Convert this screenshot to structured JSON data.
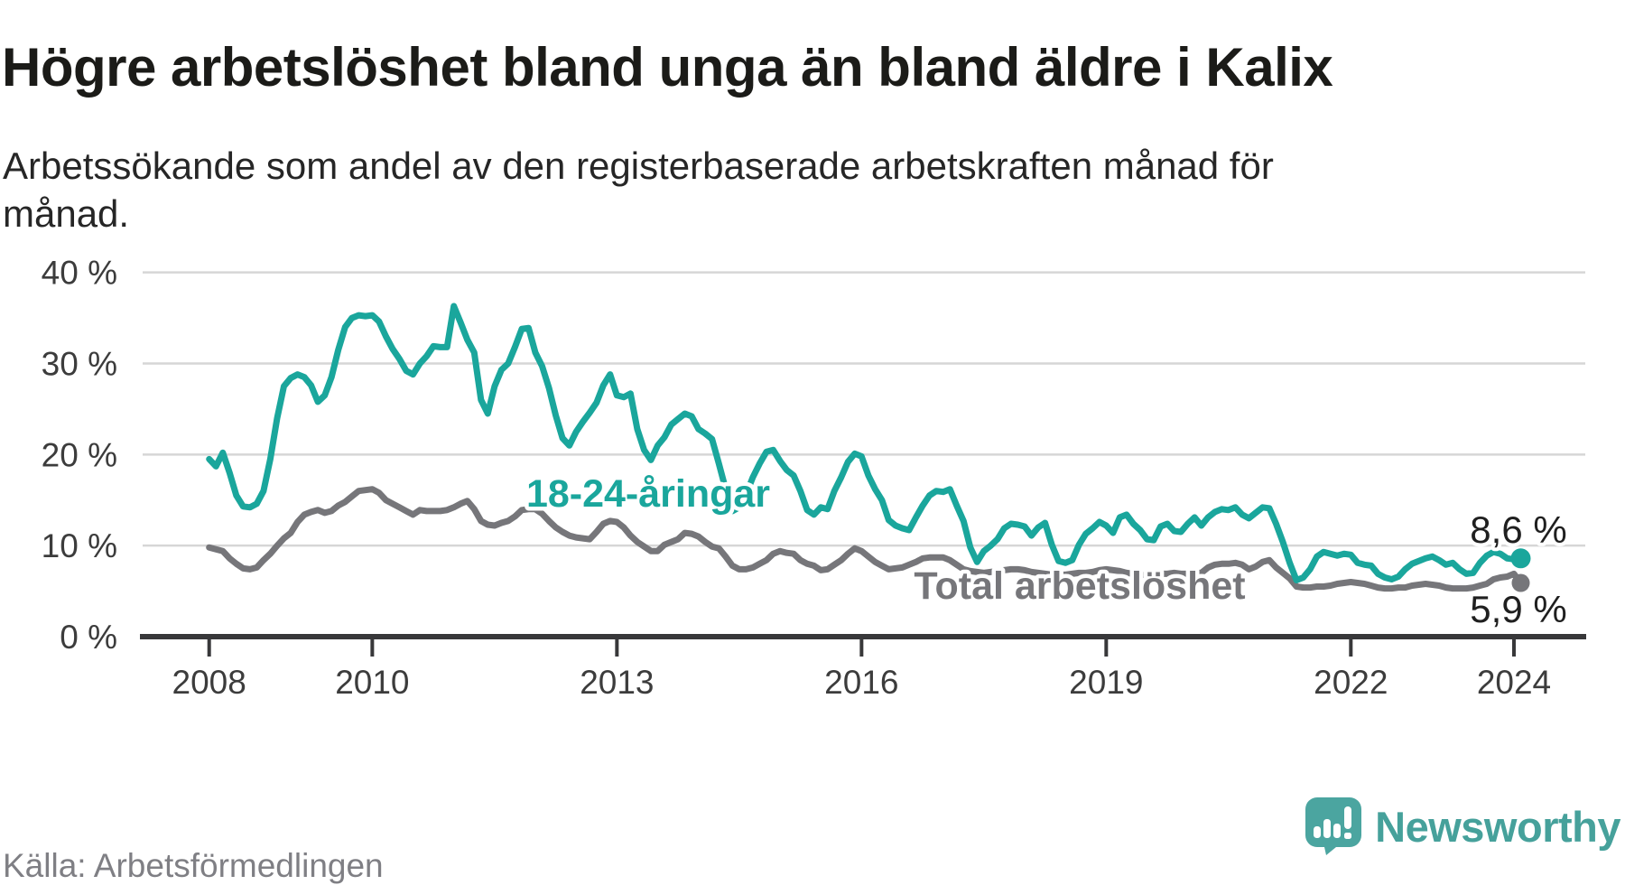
{
  "header": {
    "title": "Högre arbetslöshet bland unga än bland äldre i Kalix",
    "subtitle": "Arbetssökande som andel av den registerbaserade arbetskraften månad för månad."
  },
  "footer": {
    "source": "Källa: Arbetsförmedlingen",
    "brand": "Newsworthy"
  },
  "colors": {
    "youth_line": "#1aa69c",
    "total_line": "#76767a",
    "grid": "#d6d6d6",
    "axis": "#38383a",
    "tick_text": "#3c3c3c",
    "value_text": "#1f1f1f",
    "title_text": "#1b1b18",
    "source_text": "#7f7f84",
    "logo": "#46a19b"
  },
  "chart_data": {
    "type": "line",
    "title": "Högre arbetslöshet bland unga än bland äldre i Kalix",
    "subtitle": "Arbetssökande som andel av den registerbaserade arbetskraften månad för månad.",
    "xlabel": "",
    "ylabel": "",
    "x_start_year": 2008,
    "x_step_months": 1,
    "ylim": [
      0,
      40
    ],
    "grid": "horizontal",
    "y_axis": {
      "unit": "%",
      "ticks": [
        {
          "label": "40 %",
          "value": 40
        },
        {
          "label": "30 %",
          "value": 30
        },
        {
          "label": "20 %",
          "value": 20
        },
        {
          "label": "10 %",
          "value": 10
        },
        {
          "label": "0 %",
          "value": 0
        }
      ]
    },
    "x_axis": {
      "ticks": [
        {
          "label": "2008",
          "year": 2008
        },
        {
          "label": "2010",
          "year": 2010
        },
        {
          "label": "2013",
          "year": 2013
        },
        {
          "label": "2016",
          "year": 2016
        },
        {
          "label": "2019",
          "year": 2019
        },
        {
          "label": "2022",
          "year": 2022
        },
        {
          "label": "2024",
          "year": 2024
        }
      ]
    },
    "series": [
      {
        "id": "youth",
        "name": "18-24-åringar",
        "annotation_label": "18-24-åringar",
        "end_label": "8,6 %",
        "color_key": "youth_line",
        "values": [
          19.5,
          18.7,
          20.2,
          18.0,
          15.5,
          14.3,
          14.2,
          14.6,
          16.0,
          19.5,
          24.0,
          27.5,
          28.4,
          28.8,
          28.5,
          27.6,
          25.8,
          26.5,
          28.5,
          31.5,
          34.0,
          35.0,
          35.3,
          35.2,
          35.3,
          34.6,
          33.0,
          31.6,
          30.5,
          29.2,
          28.8,
          30.0,
          30.8,
          31.9,
          31.8,
          31.8,
          36.3,
          34.5,
          32.6,
          31.2,
          26.0,
          24.5,
          27.5,
          29.3,
          30.0,
          31.8,
          33.8,
          33.9,
          31.2,
          29.7,
          27.3,
          24.3,
          21.8,
          21.0,
          22.5,
          23.6,
          24.6,
          25.7,
          27.6,
          28.8,
          26.5,
          26.3,
          26.7,
          22.8,
          20.5,
          19.4,
          21.0,
          21.9,
          23.3,
          23.9,
          24.5,
          24.2,
          22.8,
          22.3,
          21.7,
          19.0,
          16.2,
          13.8,
          14.2,
          15.6,
          17.5,
          19.0,
          20.3,
          20.5,
          19.3,
          18.3,
          17.7,
          16.0,
          13.9,
          13.4,
          14.2,
          14.0,
          16.0,
          17.5,
          19.2,
          20.1,
          19.8,
          17.7,
          16.2,
          15.0,
          12.8,
          12.2,
          11.9,
          11.7,
          13.1,
          14.4,
          15.5,
          16.0,
          15.9,
          16.2,
          14.4,
          12.7,
          9.8,
          8.2,
          9.4,
          10.0,
          10.7,
          11.9,
          12.4,
          12.3,
          12.1,
          11.1,
          12.0,
          12.5,
          10.1,
          8.3,
          8.1,
          8.4,
          10.1,
          11.3,
          11.9,
          12.6,
          12.2,
          11.4,
          13.1,
          13.4,
          12.4,
          11.7,
          10.7,
          10.6,
          12.1,
          12.4,
          11.6,
          11.5,
          12.4,
          13.1,
          12.2,
          13.1,
          13.7,
          14.0,
          13.9,
          14.2,
          13.4,
          13.0,
          13.6,
          14.2,
          14.1,
          12.4,
          10.4,
          8.1,
          6.2,
          6.5,
          7.4,
          8.8,
          9.3,
          9.1,
          8.9,
          9.1,
          9.0,
          8.1,
          7.9,
          7.8,
          6.9,
          6.5,
          6.3,
          6.6,
          7.4,
          8.0,
          8.3,
          8.6,
          8.8,
          8.4,
          7.9,
          8.1,
          7.4,
          6.9,
          7.0,
          8.1,
          8.9,
          9.3,
          9.1,
          8.6,
          8.5,
          8.6
        ]
      },
      {
        "id": "total",
        "name": "Total arbetslöshet",
        "annotation_label": "Total arbetslöshet",
        "end_label": "5,9 %",
        "color_key": "total_line",
        "values": [
          9.8,
          9.6,
          9.4,
          8.6,
          8.0,
          7.5,
          7.4,
          7.6,
          8.4,
          9.1,
          10.0,
          10.8,
          11.4,
          12.6,
          13.4,
          13.7,
          13.9,
          13.6,
          13.8,
          14.4,
          14.8,
          15.4,
          16.0,
          16.1,
          16.2,
          15.8,
          15.0,
          14.6,
          14.2,
          13.8,
          13.4,
          13.9,
          13.8,
          13.8,
          13.8,
          13.9,
          14.2,
          14.6,
          14.9,
          14.0,
          12.7,
          12.3,
          12.2,
          12.5,
          12.7,
          13.2,
          13.9,
          14.0,
          14.0,
          13.5,
          12.7,
          12.0,
          11.5,
          11.1,
          10.9,
          10.8,
          10.7,
          11.5,
          12.4,
          12.7,
          12.6,
          12.0,
          11.1,
          10.4,
          9.9,
          9.4,
          9.4,
          10.1,
          10.4,
          10.7,
          11.4,
          11.3,
          11.0,
          10.4,
          9.9,
          9.7,
          8.8,
          7.8,
          7.4,
          7.4,
          7.6,
          8.0,
          8.4,
          9.1,
          9.4,
          9.2,
          9.1,
          8.4,
          8.0,
          7.8,
          7.3,
          7.4,
          7.9,
          8.4,
          9.1,
          9.7,
          9.4,
          8.8,
          8.2,
          7.8,
          7.4,
          7.5,
          7.6,
          7.9,
          8.2,
          8.6,
          8.7,
          8.7,
          8.7,
          8.4,
          7.9,
          7.4,
          7.2,
          7.1,
          7.0,
          7.1,
          7.2,
          7.3,
          7.4,
          7.4,
          7.3,
          7.1,
          7.0,
          6.9,
          6.8,
          6.8,
          6.8,
          6.9,
          7.0,
          7.0,
          7.1,
          7.3,
          7.4,
          7.3,
          7.2,
          7.0,
          6.9,
          6.8,
          6.7,
          6.8,
          6.9,
          6.9,
          7.0,
          6.9,
          6.9,
          7.0,
          7.0,
          7.6,
          7.9,
          8.0,
          8.0,
          8.1,
          7.9,
          7.4,
          7.7,
          8.2,
          8.4,
          7.6,
          7.0,
          6.4,
          5.5,
          5.4,
          5.4,
          5.5,
          5.5,
          5.6,
          5.8,
          5.9,
          6.0,
          5.9,
          5.8,
          5.6,
          5.4,
          5.3,
          5.3,
          5.4,
          5.4,
          5.6,
          5.7,
          5.8,
          5.7,
          5.6,
          5.4,
          5.3,
          5.3,
          5.3,
          5.4,
          5.6,
          5.8,
          6.3,
          6.5,
          6.6,
          6.9,
          5.9
        ]
      }
    ],
    "legend_position": "inline-annotations"
  }
}
